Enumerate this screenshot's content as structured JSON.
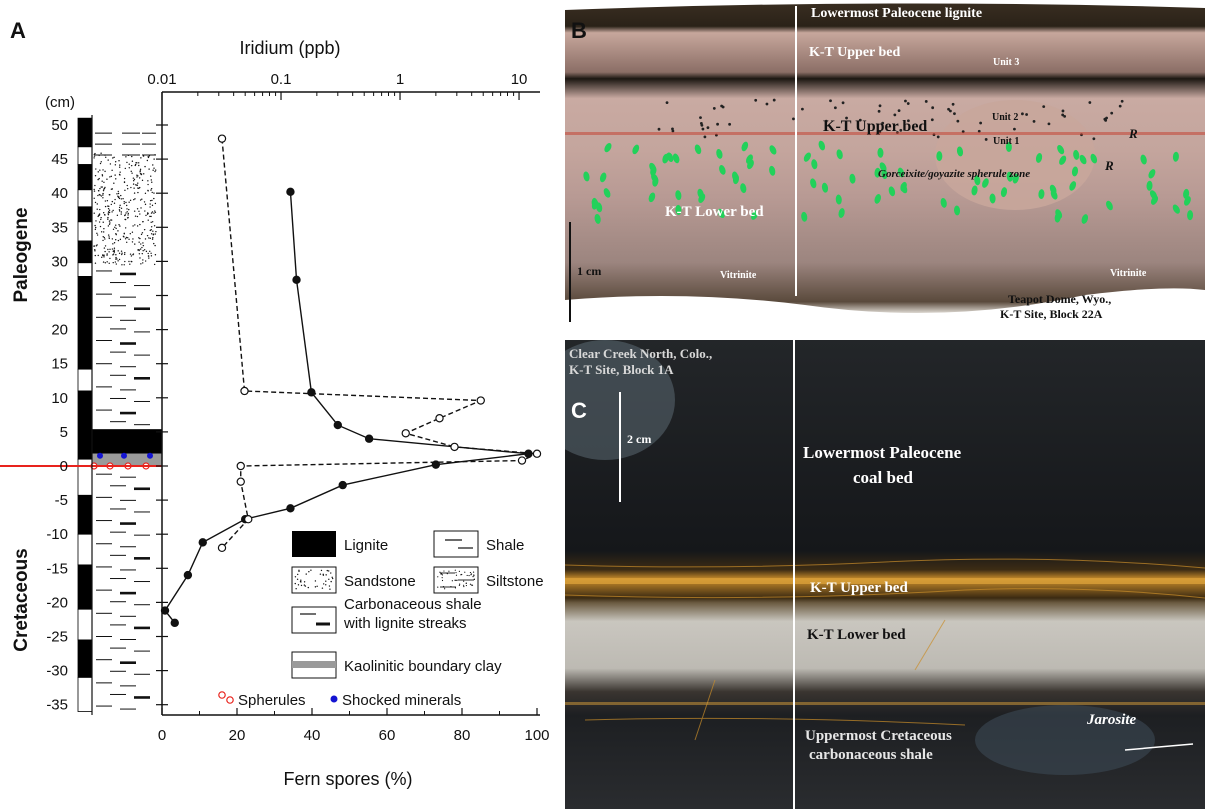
{
  "panels": {
    "a_letter": "A",
    "b_letter": "B",
    "c_letter": "C"
  },
  "chart_data": {
    "type": "line",
    "top_axis": {
      "label": "Iridium (ppb)",
      "scale": "log",
      "ticks": [
        "0.01",
        "0.1",
        "1",
        "10"
      ],
      "range": [
        0.01,
        15
      ]
    },
    "bottom_axis": {
      "label": "Fern spores (%)",
      "ticks": [
        "0",
        "20",
        "40",
        "60",
        "80",
        "100"
      ],
      "range": [
        0,
        100
      ]
    },
    "y_axis": {
      "unit": "(cm)",
      "ticks": [
        "50",
        "45",
        "40",
        "35",
        "30",
        "25",
        "20",
        "15",
        "10",
        "5",
        "0",
        "-5",
        "-10",
        "-15",
        "-20",
        "-25",
        "-30",
        "-35"
      ],
      "range": [
        -36,
        51
      ]
    },
    "era_labels": [
      "Paleogene",
      "Cretaceous"
    ],
    "series": [
      {
        "axis": "top",
        "style": "solid-filled",
        "points": [
          {
            "x": 0.12,
            "y": 40.2
          },
          {
            "x": 0.135,
            "y": 27.3
          },
          {
            "x": 0.18,
            "y": 10.8
          },
          {
            "x": 0.3,
            "y": 6.0
          },
          {
            "x": 0.55,
            "y": 4.0
          },
          {
            "x": 12.0,
            "y": 1.8
          },
          {
            "x": 2.0,
            "y": 0.2
          },
          {
            "x": 0.33,
            "y": -2.8
          },
          {
            "x": 0.12,
            "y": -6.2
          },
          {
            "x": 0.05,
            "y": -7.8
          },
          {
            "x": 0.022,
            "y": -11.2
          },
          {
            "x": 0.0165,
            "y": -16.0
          },
          {
            "x": 0.0106,
            "y": -21.2
          },
          {
            "x": 0.0128,
            "y": -23.0
          }
        ]
      },
      {
        "axis": "bottom",
        "style": "dashed-open",
        "points": [
          {
            "x": 16,
            "y": 48.0
          },
          {
            "x": 22,
            "y": 11.0
          },
          {
            "x": 85,
            "y": 9.6
          },
          {
            "x": 74,
            "y": 7.0
          },
          {
            "x": 65,
            "y": 4.8
          },
          {
            "x": 78,
            "y": 2.8
          },
          {
            "x": 100,
            "y": 1.8
          },
          {
            "x": 96,
            "y": 0.8
          },
          {
            "x": 21,
            "y": 0.0
          },
          {
            "x": 21,
            "y": -2.3
          },
          {
            "x": 23,
            "y": -7.8
          },
          {
            "x": 16,
            "y": -12.0
          }
        ]
      }
    ],
    "legend": [
      {
        "key": "lignite",
        "label": "Lignite"
      },
      {
        "key": "shale",
        "label": "Shale"
      },
      {
        "key": "sandstone",
        "label": "Sandstone"
      },
      {
        "key": "siltstone",
        "label": "Siltstone"
      },
      {
        "key": "carb",
        "label": "Carbonaceous shale\nwith lignite streaks"
      },
      {
        "key": "clay",
        "label": "Kaolinitic boundary clay"
      },
      {
        "key": "spherules",
        "label": "Spherules"
      },
      {
        "key": "shocked",
        "label": "Shocked minerals"
      }
    ]
  },
  "photo_b": {
    "labels": {
      "lowermost": "Lowermost Paleocene lignite",
      "upper1": "K-T Upper bed",
      "unit3": "Unit 3",
      "upper2": "K-T Upper bed",
      "unit2": "Unit 2",
      "unit1": "Unit 1",
      "r1": "R",
      "r2": "R",
      "spherule": "Gorceixite/goyazite spherule zone",
      "lower": "K-T Lower bed",
      "scale": "1 cm",
      "vitrinite1": "Vitrinite",
      "vitrinite2": "Vitrinite",
      "site1": "Teapot Dome, Wyo.,",
      "site2": "K-T Site, Block 22A"
    }
  },
  "photo_c": {
    "labels": {
      "site1": "Clear Creek North, Colo.,",
      "site2": "K-T Site, Block 1A",
      "scale": "2 cm",
      "coal1": "Lowermost Paleocene",
      "coal2": "coal bed",
      "upper": "K-T Upper bed",
      "lower": "K-T Lower bed",
      "creta1": "Uppermost Cretaceous",
      "creta2": "carbonaceous shale",
      "jarosite": "Jarosite"
    }
  },
  "colors": {
    "boundary_line": "#e8231d",
    "spherule": "#e8231d",
    "shocked": "#1414d2",
    "clay": "#9a9a9a",
    "green_grains": "#22d15a"
  }
}
